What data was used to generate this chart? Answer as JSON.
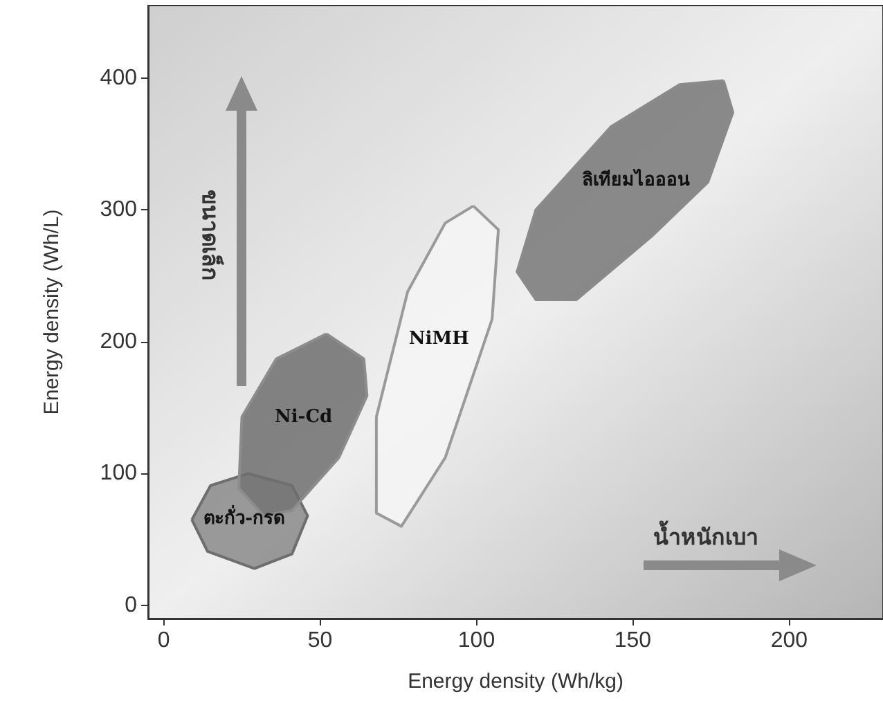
{
  "chart_data": {
    "type": "area",
    "xlabel": "Energy density (Wh/kg)",
    "ylabel": "Energy density (Wh/L)",
    "xlim": [
      -5,
      230
    ],
    "ylim": [
      -10,
      455
    ],
    "xticks": [
      0,
      50,
      100,
      150,
      200
    ],
    "yticks": [
      0,
      100,
      200,
      300,
      400
    ],
    "grid": false,
    "legend": false,
    "marker": "none",
    "line_style": "solid",
    "annotations": [
      "ขนาดเล็ก",
      "น้ำหนักเบา"
    ],
    "series": [
      {
        "name": "ตะกั่ว-กรด",
        "color": "#6e6e6e",
        "x": [
          9,
          15,
          27,
          41,
          46,
          41,
          29,
          14,
          9
        ],
        "values": [
          65,
          91,
          100,
          91,
          68,
          39,
          28,
          41,
          65
        ]
      },
      {
        "name": "Ni-Cd",
        "color": "#8c8c8c",
        "x": [
          52,
          64,
          65,
          56,
          41,
          32,
          24,
          25,
          36,
          52
        ],
        "values": [
          206,
          187,
          159,
          112,
          72,
          68,
          89,
          143,
          187,
          206
        ]
      },
      {
        "name": "NiMH",
        "color": "#9a9a9a",
        "x": [
          99,
          107,
          105,
          90,
          76,
          68,
          68,
          78,
          90,
          99
        ],
        "values": [
          303,
          285,
          217,
          112,
          60,
          70,
          143,
          238,
          290,
          303
        ]
      },
      {
        "name": "ลิเทียมไอออน",
        "color": "#8a8a8a",
        "x": [
          179,
          182,
          174,
          156,
          132,
          119,
          113,
          119,
          143,
          165,
          179
        ],
        "values": [
          398,
          374,
          321,
          280,
          232,
          232,
          253,
          300,
          363,
          395,
          398
        ]
      }
    ]
  }
}
